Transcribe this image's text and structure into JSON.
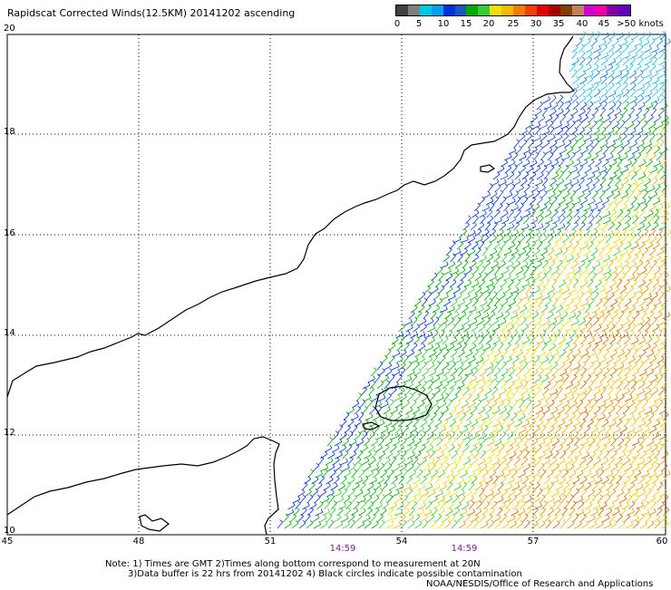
{
  "header": {
    "title": "Rapidscat Corrected Winds(12.5KM) 20141202 ascending"
  },
  "legend": {
    "colors": [
      "#404040",
      "#7f7f7f",
      "#00c8e0",
      "#00a0f0",
      "#0030d8",
      "#1858c0",
      "#00a800",
      "#38c838",
      "#f0e000",
      "#f8b800",
      "#f08000",
      "#f04000",
      "#e00000",
      "#a80000",
      "#804000",
      "#c08060",
      "#d000d0",
      "#f000a0",
      "#8000a0",
      "#6000c0"
    ],
    "labels": [
      "0",
      "5",
      "10",
      "15",
      "20",
      "25",
      "30",
      "35",
      "40",
      "45",
      ">50 knots"
    ]
  },
  "map": {
    "lat_labels": [
      "20",
      "18",
      "16",
      "14",
      "12",
      "10"
    ],
    "lon_labels": [
      "45",
      "48",
      "51",
      "54",
      "57",
      "60"
    ],
    "time_labels": [
      "14:59",
      "14:59"
    ]
  },
  "notes": {
    "line1": "Note: 1) Times are GMT 2)Times along bottom correspond to measurement at 20N",
    "line2": "3)Data buffer is 22 hrs from 20141202 4) Black circles indicate possible contamination",
    "line3": "NOAA/NESDIS/Office of Research and Applications"
  }
}
